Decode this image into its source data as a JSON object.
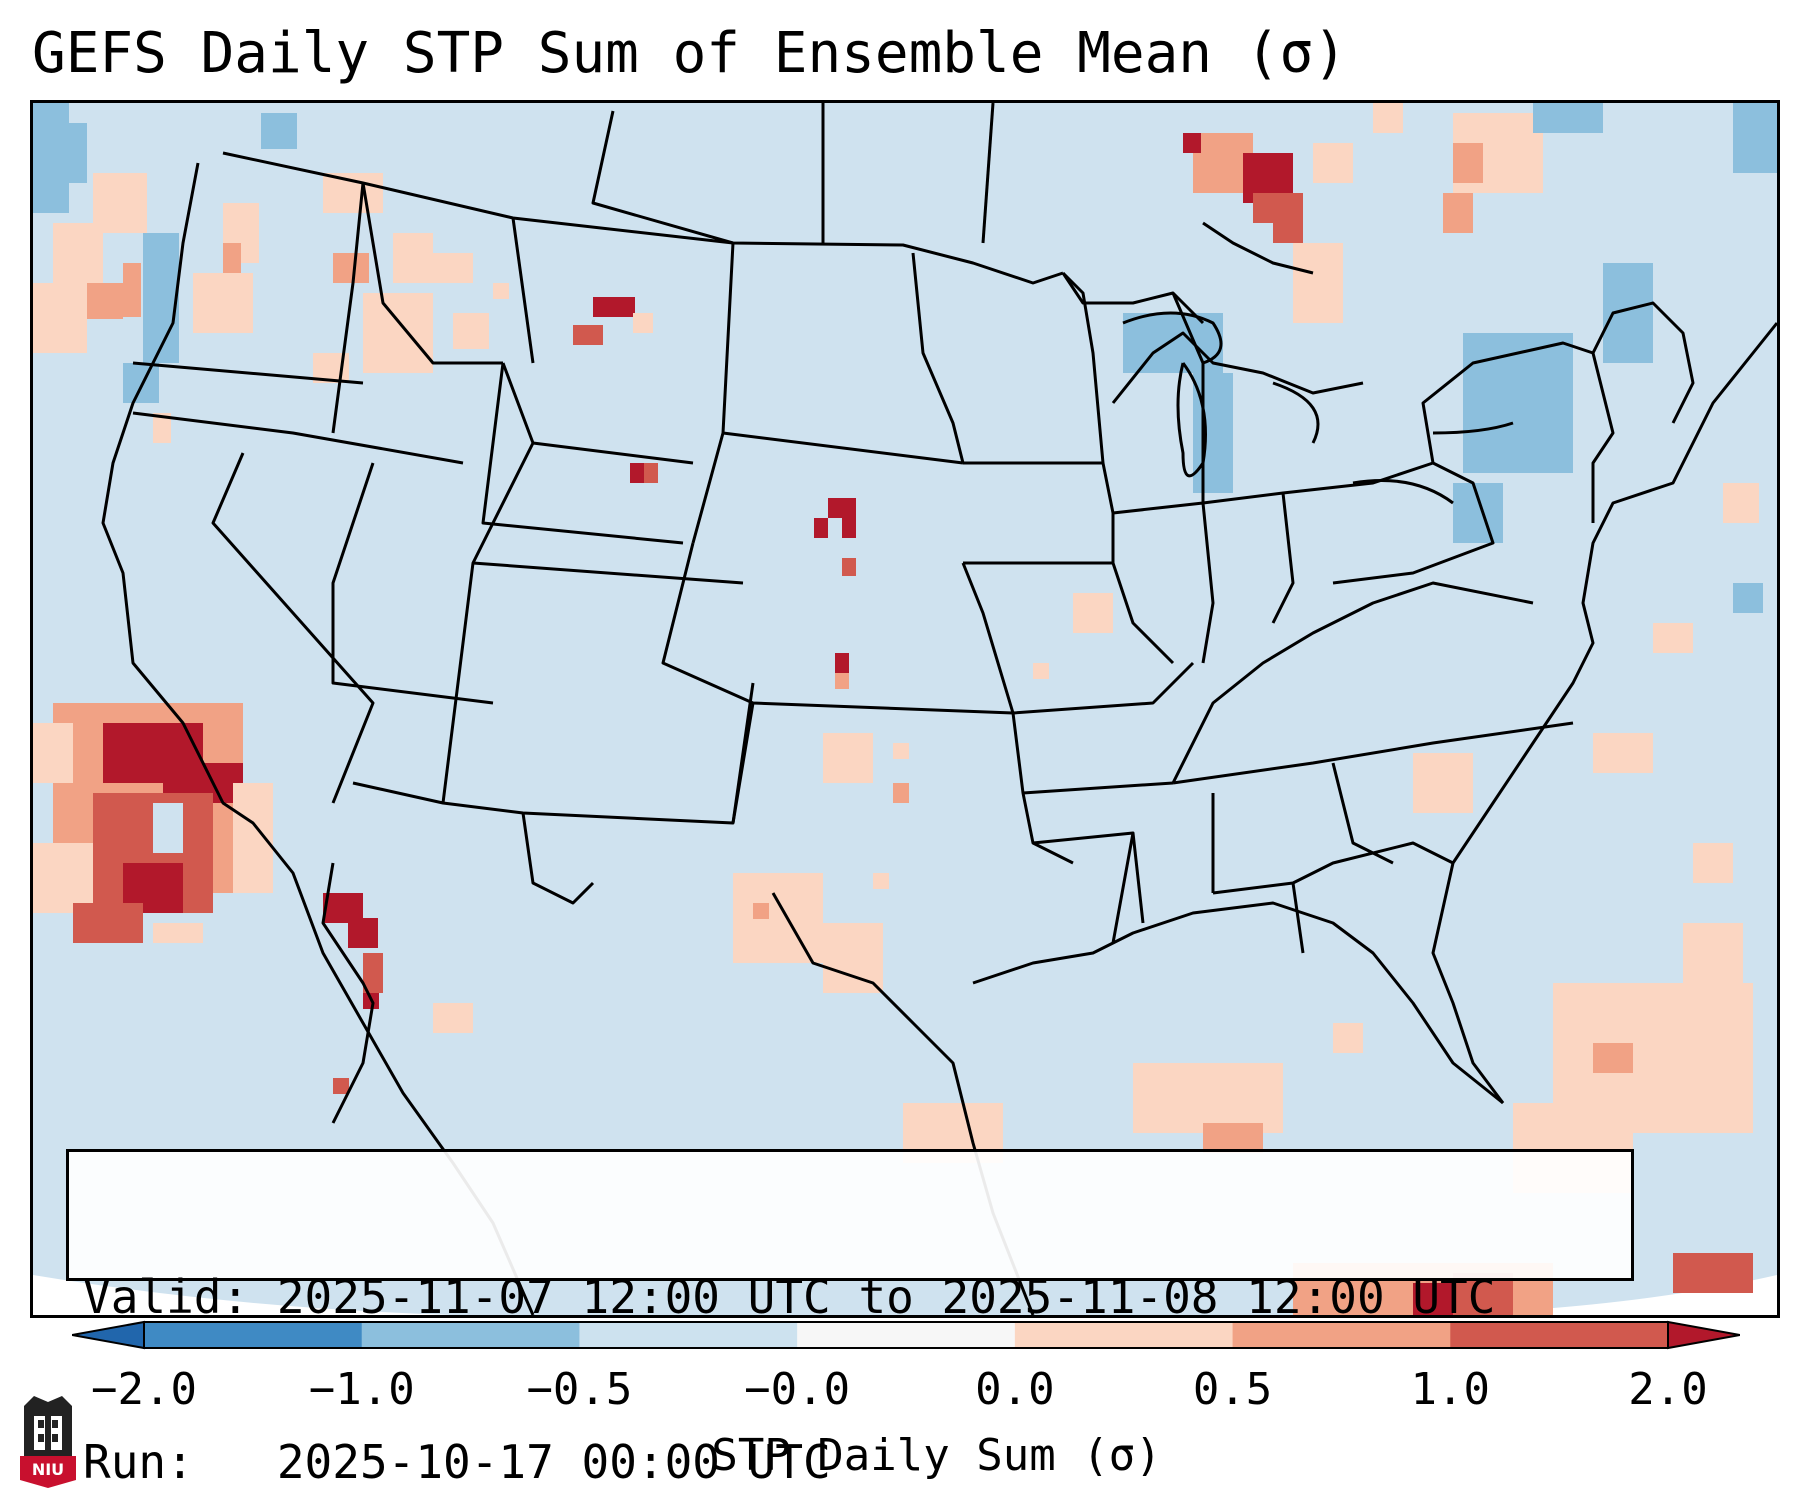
{
  "title": "GEFS Daily STP Sum of Ensemble Mean (σ)",
  "info": {
    "valid_line": "Valid: 2025-11-07 12:00 UTC to 2025-11-08 12:00 UTC",
    "run_line": "Run:   2025-10-17 00:00 UTC"
  },
  "colorbar": {
    "label": "STP Daily Sum (σ)",
    "ticks": [
      "−2.0",
      "−1.0",
      "−0.5",
      "−0.0",
      "0.0",
      "0.5",
      "1.0",
      "2.0"
    ],
    "bins": [
      {
        "from": -2.0,
        "to": -1.0,
        "color": "#3f8ac4"
      },
      {
        "from": -1.0,
        "to": -0.5,
        "color": "#8cbfdd"
      },
      {
        "from": -0.5,
        "to": -0.0,
        "color": "#cde2ef"
      },
      {
        "from": -0.0,
        "to": 0.0,
        "color": "#f7f7f7"
      },
      {
        "from": 0.0,
        "to": 0.5,
        "color": "#fbd6c2"
      },
      {
        "from": 0.5,
        "to": 1.0,
        "color": "#f1a285"
      },
      {
        "from": 1.0,
        "to": 2.0,
        "color": "#d1594e"
      }
    ],
    "under_color": "#2166ac",
    "over_color": "#b2182b",
    "extend": "both"
  },
  "colors": {
    "background": "#cfe2ef",
    "borders": "#000000"
  },
  "logo": {
    "text": "NIU",
    "icon": "niu-tower-icon"
  }
}
